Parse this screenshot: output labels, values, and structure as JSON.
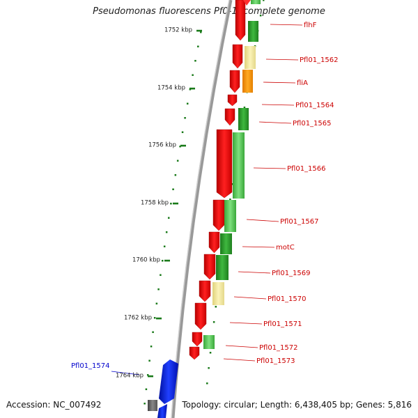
{
  "title": "Pseudomonas fluorescens Pf0-1, complete genome",
  "footer": {
    "accession": "Accession: NC_007492",
    "topology": "Topology: circular; Length: 6,438,405 bp; Genes: 5,816"
  },
  "colors": {
    "background": "#ffffff",
    "backbone": "#888888",
    "tick": "#1a7a1a",
    "reverse_strand_gene": "#ee1111",
    "green_gene": "#2a9a2a",
    "light_green_gene": "#55cc55",
    "pale_yellow_gene": "#f2eaa0",
    "orange_gene": "#ff9900",
    "blue_gene": "#0a1fe0",
    "gray_gene": "#666666",
    "label_red": "#cc0000",
    "label_blue": "#0000cc"
  },
  "scale_labels": [
    "1752 kbp",
    "1754 kbp",
    "1756 kbp",
    "1758 kbp",
    "1760 kbp",
    "1762 kbp",
    "1764 kbp"
  ],
  "gene_labels": [
    {
      "text": "flhF",
      "color": "red"
    },
    {
      "text": "Pfl01_1562",
      "color": "red"
    },
    {
      "text": "fliA",
      "color": "red"
    },
    {
      "text": "Pfl01_1564",
      "color": "red"
    },
    {
      "text": "Pfl01_1565",
      "color": "red"
    },
    {
      "text": "Pfl01_1566",
      "color": "red"
    },
    {
      "text": "Pfl01_1567",
      "color": "red"
    },
    {
      "text": "motC",
      "color": "red"
    },
    {
      "text": "Pfl01_1569",
      "color": "red"
    },
    {
      "text": "Pfl01_1570",
      "color": "red"
    },
    {
      "text": "Pfl01_1571",
      "color": "red"
    },
    {
      "text": "Pfl01_1572",
      "color": "red"
    },
    {
      "text": "Pfl01_1573",
      "color": "red"
    },
    {
      "text": "Pfl01_1574",
      "color": "blue"
    }
  ]
}
